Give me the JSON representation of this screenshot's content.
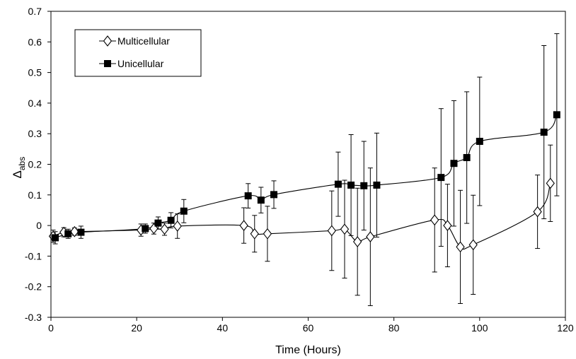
{
  "chart_data": {
    "type": "scatter",
    "xlabel": "Time (Hours)",
    "ylabel_main": "Δ",
    "ylabel_sub": "abs",
    "xlim": [
      0,
      120
    ],
    "ylim": [
      -0.3,
      0.7
    ],
    "xticks": [
      0,
      20,
      40,
      60,
      80,
      100,
      120
    ],
    "yticks": [
      -0.3,
      -0.2,
      -0.1,
      0,
      0.1,
      0.2,
      0.3,
      0.4,
      0.5,
      0.6,
      0.7
    ],
    "xtick_labels": [
      "0",
      "20",
      "40",
      "60",
      "80",
      "100",
      "120"
    ],
    "ytick_labels": [
      "-0.3",
      "-0.2",
      "-0.1",
      "0",
      "0.1",
      "0.2",
      "0.3",
      "0.4",
      "0.5",
      "0.6",
      "0.7"
    ],
    "grid": false,
    "legend_position": "top-left",
    "series": [
      {
        "name": "Multicellular",
        "marker": "open-diamond",
        "color": "#000000",
        "points": [
          {
            "x": 0.5,
            "y": -0.035,
            "err": 0.02
          },
          {
            "x": 3,
            "y": -0.022,
            "err": 0.015
          },
          {
            "x": 5.5,
            "y": -0.02,
            "err": 0.012
          },
          {
            "x": 21,
            "y": -0.015,
            "err": 0.02
          },
          {
            "x": 24,
            "y": -0.01,
            "err": 0.018
          },
          {
            "x": 26.5,
            "y": -0.012,
            "err": 0.02
          },
          {
            "x": 29.5,
            "y": -0.002,
            "err": 0.04
          },
          {
            "x": 45,
            "y": 0.0,
            "err": 0.058
          },
          {
            "x": 47.5,
            "y": -0.027,
            "err": 0.06
          },
          {
            "x": 50.5,
            "y": -0.027,
            "err": 0.09
          },
          {
            "x": 65.5,
            "y": -0.017,
            "err": 0.13
          },
          {
            "x": 68.5,
            "y": -0.012,
            "err": 0.16
          },
          {
            "x": 71.5,
            "y": -0.053,
            "err": 0.175
          },
          {
            "x": 74.5,
            "y": -0.037,
            "err": 0.225
          },
          {
            "x": 89.5,
            "y": 0.018,
            "err": 0.17
          },
          {
            "x": 92.5,
            "y": 0.0,
            "err": 0.135
          },
          {
            "x": 95.5,
            "y": -0.07,
            "err": 0.185
          },
          {
            "x": 98.5,
            "y": -0.063,
            "err": 0.162
          },
          {
            "x": 113.5,
            "y": 0.045,
            "err": 0.12
          },
          {
            "x": 116.5,
            "y": 0.138,
            "err": 0.125
          }
        ]
      },
      {
        "name": "Unicellular",
        "marker": "filled-square",
        "color": "#000000",
        "points": [
          {
            "x": 1,
            "y": -0.04,
            "err": 0.02
          },
          {
            "x": 4,
            "y": -0.027,
            "err": 0.015
          },
          {
            "x": 7,
            "y": -0.022,
            "err": 0.02
          },
          {
            "x": 22,
            "y": -0.01,
            "err": 0.015
          },
          {
            "x": 25,
            "y": 0.008,
            "err": 0.02
          },
          {
            "x": 28,
            "y": 0.017,
            "err": 0.025
          },
          {
            "x": 31,
            "y": 0.047,
            "err": 0.038
          },
          {
            "x": 46,
            "y": 0.097,
            "err": 0.04
          },
          {
            "x": 49,
            "y": 0.083,
            "err": 0.042
          },
          {
            "x": 52,
            "y": 0.101,
            "err": 0.045
          },
          {
            "x": 67,
            "y": 0.135,
            "err": 0.105
          },
          {
            "x": 70,
            "y": 0.132,
            "err": 0.165
          },
          {
            "x": 73,
            "y": 0.13,
            "err": 0.145
          },
          {
            "x": 76,
            "y": 0.132,
            "err": 0.17
          },
          {
            "x": 91,
            "y": 0.157,
            "err": 0.225
          },
          {
            "x": 94,
            "y": 0.203,
            "err": 0.205
          },
          {
            "x": 97,
            "y": 0.222,
            "err": 0.215
          },
          {
            "x": 100,
            "y": 0.275,
            "err": 0.21
          },
          {
            "x": 115,
            "y": 0.305,
            "err": 0.283
          },
          {
            "x": 118,
            "y": 0.362,
            "err": 0.265
          }
        ]
      }
    ]
  }
}
